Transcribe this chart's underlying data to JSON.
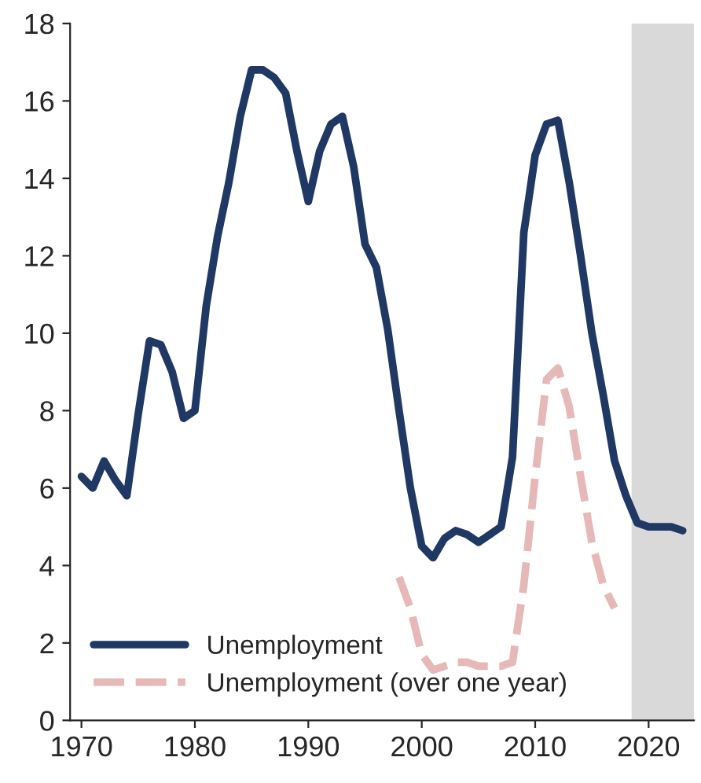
{
  "chart_data": {
    "type": "line",
    "xlim": [
      1969,
      2024
    ],
    "ylim": [
      0,
      18
    ],
    "xticks": [
      1970,
      1980,
      1990,
      2000,
      2010,
      2020
    ],
    "yticks": [
      0,
      2,
      4,
      6,
      8,
      10,
      12,
      14,
      16,
      18
    ],
    "grid": false,
    "legend": "bottom left",
    "bands": [
      {
        "axis": "x",
        "from": 2018.5,
        "to": 2024,
        "color": "#d9d9d9"
      }
    ],
    "series": [
      {
        "name": "Unemployment",
        "color": "#1f3864",
        "line_style": "solid",
        "x": [
          1970,
          1971,
          1972,
          1973,
          1974,
          1975,
          1976,
          1977,
          1978,
          1979,
          1980,
          1981,
          1982,
          1983,
          1984,
          1985,
          1986,
          1987,
          1988,
          1989,
          1990,
          1991,
          1992,
          1993,
          1994,
          1995,
          1996,
          1997,
          1998,
          1999,
          2000,
          2001,
          2002,
          2003,
          2004,
          2005,
          2006,
          2007,
          2008,
          2009,
          2010,
          2011,
          2012,
          2013,
          2014,
          2015,
          2016,
          2017,
          2018,
          2019,
          2020,
          2021,
          2022,
          2023
        ],
        "values": [
          6.3,
          6.0,
          6.7,
          6.2,
          5.8,
          7.9,
          9.8,
          9.7,
          9.0,
          7.8,
          8.0,
          10.7,
          12.5,
          13.9,
          15.6,
          16.8,
          16.8,
          16.6,
          16.2,
          14.7,
          13.4,
          14.7,
          15.4,
          15.6,
          14.3,
          12.3,
          11.7,
          10.1,
          8.0,
          6.0,
          4.5,
          4.2,
          4.7,
          4.9,
          4.8,
          4.6,
          4.8,
          5.0,
          6.8,
          12.6,
          14.6,
          15.4,
          15.5,
          13.9,
          12.0,
          10.0,
          8.4,
          6.7,
          5.8,
          5.1,
          5.0,
          5.0,
          5.0,
          4.9
        ]
      },
      {
        "name": "Unemployment (over one year)",
        "color": "#e6b8b8",
        "line_style": "dashed",
        "x": [
          1998,
          1999,
          2000,
          2001,
          2002,
          2003,
          2004,
          2005,
          2006,
          2007,
          2008,
          2009,
          2010,
          2011,
          2012,
          2013,
          2014,
          2015,
          2016,
          2017
        ],
        "values": [
          3.7,
          2.9,
          1.7,
          1.3,
          1.4,
          1.5,
          1.5,
          1.4,
          1.4,
          1.4,
          1.5,
          3.5,
          6.3,
          8.8,
          9.1,
          8.1,
          6.3,
          4.6,
          3.5,
          2.9
        ]
      }
    ]
  }
}
